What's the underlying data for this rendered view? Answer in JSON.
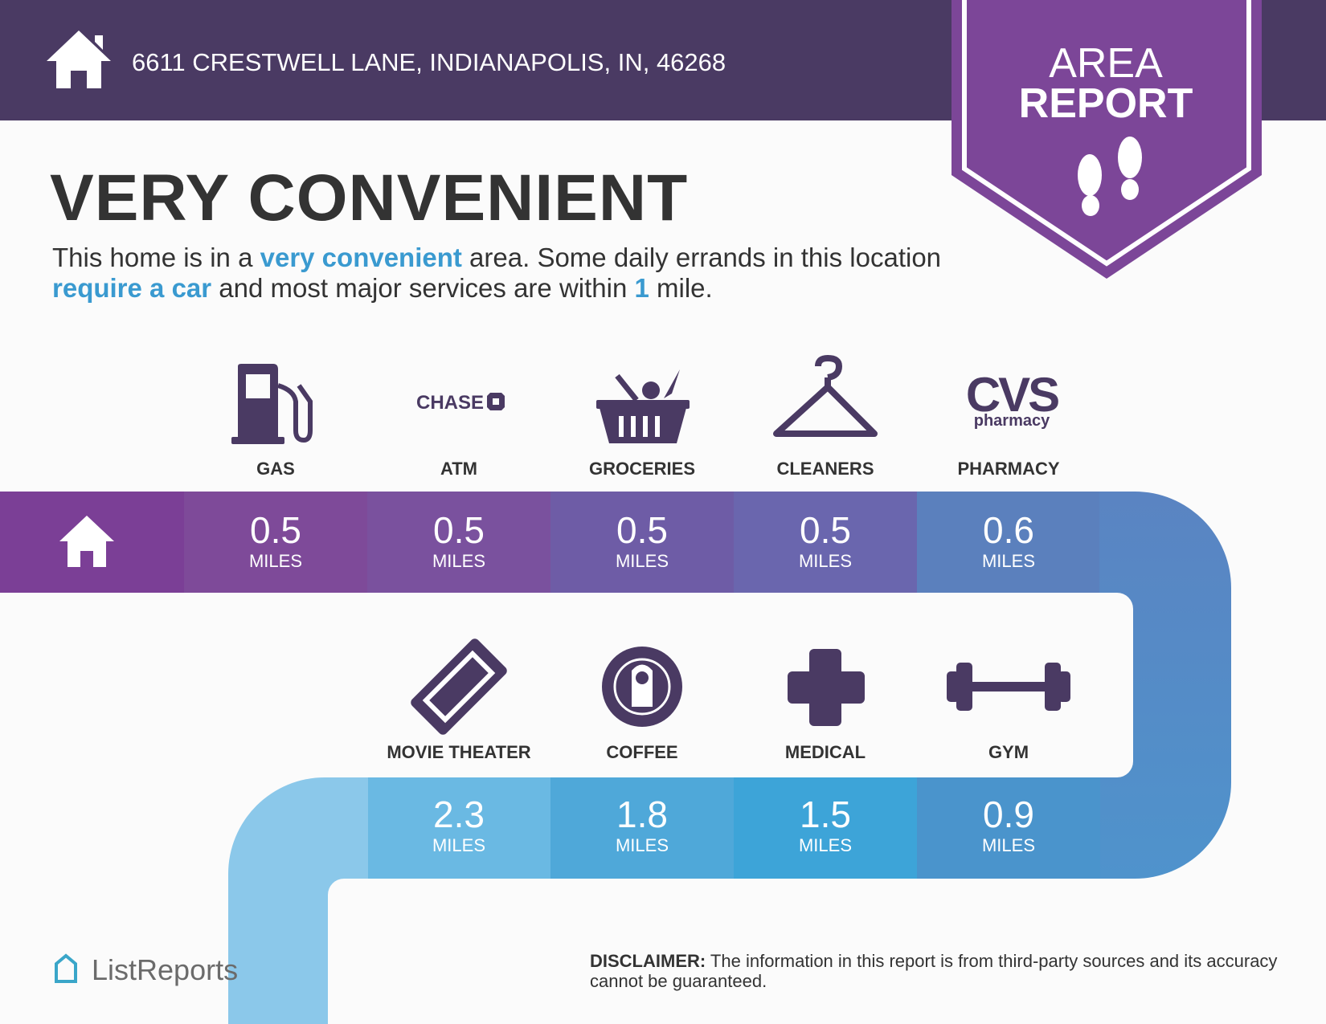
{
  "header": {
    "address": "6611 CRESTWELL LANE, INDIANAPOLIS, IN, 46268"
  },
  "badge": {
    "line1": "AREA",
    "line2": "REPORT"
  },
  "headline": "VERY CONVENIENT",
  "description": [
    "This home is in a ",
    "very convenient",
    " area. Some daily errands in this location ",
    "require a car",
    " and most major services are within ",
    "1",
    " mile."
  ],
  "logos": {
    "chase": "CHASE",
    "cvs": "CVS",
    "cvs_sub": "pharmacy"
  },
  "row1": [
    {
      "label": "GAS",
      "distance": 0.5,
      "unit": "MILES"
    },
    {
      "label": "ATM",
      "distance": 0.5,
      "unit": "MILES"
    },
    {
      "label": "GROCERIES",
      "distance": 0.5,
      "unit": "MILES"
    },
    {
      "label": "CLEANERS",
      "distance": 0.5,
      "unit": "MILES"
    },
    {
      "label": "PHARMACY",
      "distance": 0.6,
      "unit": "MILES"
    }
  ],
  "row2": [
    {
      "label": "MOVIE THEATER",
      "distance": 2.3,
      "unit": "MILES"
    },
    {
      "label": "COFFEE",
      "distance": 1.8,
      "unit": "MILES"
    },
    {
      "label": "MEDICAL",
      "distance": 1.5,
      "unit": "MILES"
    },
    {
      "label": "GYM",
      "distance": 0.9,
      "unit": "MILES"
    }
  ],
  "brand": "ListReports",
  "disclaimer": {
    "label": "DISCLAIMER:",
    "text": " The information in this report is from third-party sources and its accuracy cannot be guaranteed."
  }
}
